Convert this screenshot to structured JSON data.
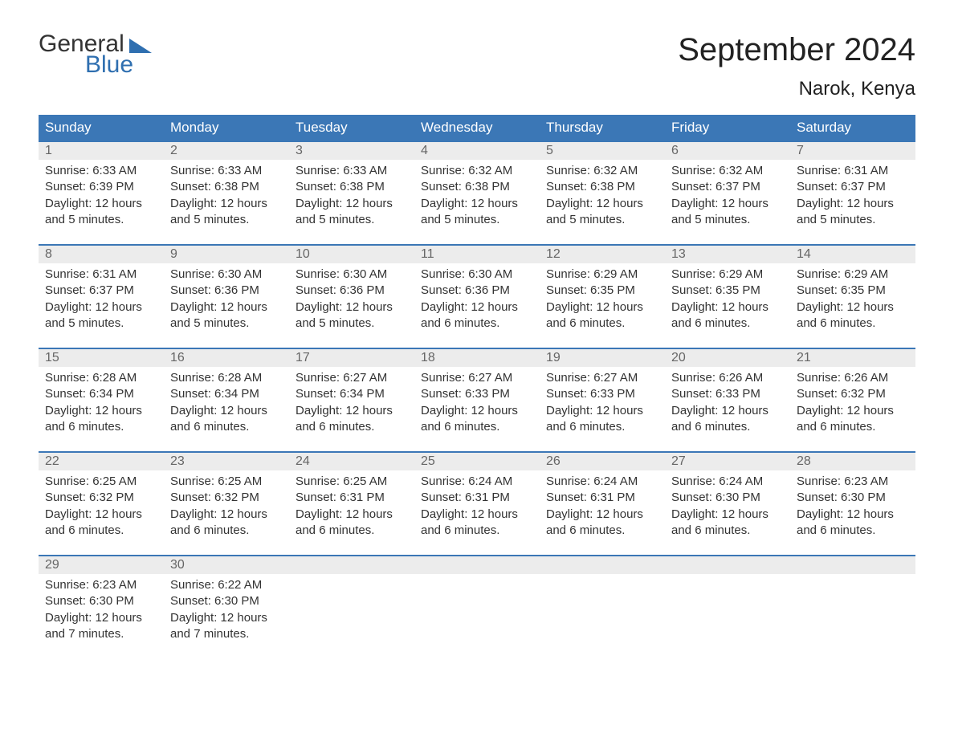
{
  "logo": {
    "word1": "General",
    "word2": "Blue"
  },
  "title": "September 2024",
  "location": "Narok, Kenya",
  "colors": {
    "header_bg": "#3b77b6",
    "header_text": "#ffffff",
    "daynum_bg": "#ececec",
    "divider": "#3b77b6",
    "logo_blue": "#2f6fb0",
    "body_text": "#333333",
    "background": "#ffffff"
  },
  "fonts": {
    "title_size_pt": 30,
    "location_size_pt": 18,
    "header_size_pt": 13,
    "cell_size_pt": 11
  },
  "type": "calendar-table",
  "day_names": [
    "Sunday",
    "Monday",
    "Tuesday",
    "Wednesday",
    "Thursday",
    "Friday",
    "Saturday"
  ],
  "weeks": [
    [
      {
        "n": "1",
        "sunrise": "Sunrise: 6:33 AM",
        "sunset": "Sunset: 6:39 PM",
        "d1": "Daylight: 12 hours",
        "d2": "and 5 minutes."
      },
      {
        "n": "2",
        "sunrise": "Sunrise: 6:33 AM",
        "sunset": "Sunset: 6:38 PM",
        "d1": "Daylight: 12 hours",
        "d2": "and 5 minutes."
      },
      {
        "n": "3",
        "sunrise": "Sunrise: 6:33 AM",
        "sunset": "Sunset: 6:38 PM",
        "d1": "Daylight: 12 hours",
        "d2": "and 5 minutes."
      },
      {
        "n": "4",
        "sunrise": "Sunrise: 6:32 AM",
        "sunset": "Sunset: 6:38 PM",
        "d1": "Daylight: 12 hours",
        "d2": "and 5 minutes."
      },
      {
        "n": "5",
        "sunrise": "Sunrise: 6:32 AM",
        "sunset": "Sunset: 6:38 PM",
        "d1": "Daylight: 12 hours",
        "d2": "and 5 minutes."
      },
      {
        "n": "6",
        "sunrise": "Sunrise: 6:32 AM",
        "sunset": "Sunset: 6:37 PM",
        "d1": "Daylight: 12 hours",
        "d2": "and 5 minutes."
      },
      {
        "n": "7",
        "sunrise": "Sunrise: 6:31 AM",
        "sunset": "Sunset: 6:37 PM",
        "d1": "Daylight: 12 hours",
        "d2": "and 5 minutes."
      }
    ],
    [
      {
        "n": "8",
        "sunrise": "Sunrise: 6:31 AM",
        "sunset": "Sunset: 6:37 PM",
        "d1": "Daylight: 12 hours",
        "d2": "and 5 minutes."
      },
      {
        "n": "9",
        "sunrise": "Sunrise: 6:30 AM",
        "sunset": "Sunset: 6:36 PM",
        "d1": "Daylight: 12 hours",
        "d2": "and 5 minutes."
      },
      {
        "n": "10",
        "sunrise": "Sunrise: 6:30 AM",
        "sunset": "Sunset: 6:36 PM",
        "d1": "Daylight: 12 hours",
        "d2": "and 5 minutes."
      },
      {
        "n": "11",
        "sunrise": "Sunrise: 6:30 AM",
        "sunset": "Sunset: 6:36 PM",
        "d1": "Daylight: 12 hours",
        "d2": "and 6 minutes."
      },
      {
        "n": "12",
        "sunrise": "Sunrise: 6:29 AM",
        "sunset": "Sunset: 6:35 PM",
        "d1": "Daylight: 12 hours",
        "d2": "and 6 minutes."
      },
      {
        "n": "13",
        "sunrise": "Sunrise: 6:29 AM",
        "sunset": "Sunset: 6:35 PM",
        "d1": "Daylight: 12 hours",
        "d2": "and 6 minutes."
      },
      {
        "n": "14",
        "sunrise": "Sunrise: 6:29 AM",
        "sunset": "Sunset: 6:35 PM",
        "d1": "Daylight: 12 hours",
        "d2": "and 6 minutes."
      }
    ],
    [
      {
        "n": "15",
        "sunrise": "Sunrise: 6:28 AM",
        "sunset": "Sunset: 6:34 PM",
        "d1": "Daylight: 12 hours",
        "d2": "and 6 minutes."
      },
      {
        "n": "16",
        "sunrise": "Sunrise: 6:28 AM",
        "sunset": "Sunset: 6:34 PM",
        "d1": "Daylight: 12 hours",
        "d2": "and 6 minutes."
      },
      {
        "n": "17",
        "sunrise": "Sunrise: 6:27 AM",
        "sunset": "Sunset: 6:34 PM",
        "d1": "Daylight: 12 hours",
        "d2": "and 6 minutes."
      },
      {
        "n": "18",
        "sunrise": "Sunrise: 6:27 AM",
        "sunset": "Sunset: 6:33 PM",
        "d1": "Daylight: 12 hours",
        "d2": "and 6 minutes."
      },
      {
        "n": "19",
        "sunrise": "Sunrise: 6:27 AM",
        "sunset": "Sunset: 6:33 PM",
        "d1": "Daylight: 12 hours",
        "d2": "and 6 minutes."
      },
      {
        "n": "20",
        "sunrise": "Sunrise: 6:26 AM",
        "sunset": "Sunset: 6:33 PM",
        "d1": "Daylight: 12 hours",
        "d2": "and 6 minutes."
      },
      {
        "n": "21",
        "sunrise": "Sunrise: 6:26 AM",
        "sunset": "Sunset: 6:32 PM",
        "d1": "Daylight: 12 hours",
        "d2": "and 6 minutes."
      }
    ],
    [
      {
        "n": "22",
        "sunrise": "Sunrise: 6:25 AM",
        "sunset": "Sunset: 6:32 PM",
        "d1": "Daylight: 12 hours",
        "d2": "and 6 minutes."
      },
      {
        "n": "23",
        "sunrise": "Sunrise: 6:25 AM",
        "sunset": "Sunset: 6:32 PM",
        "d1": "Daylight: 12 hours",
        "d2": "and 6 minutes."
      },
      {
        "n": "24",
        "sunrise": "Sunrise: 6:25 AM",
        "sunset": "Sunset: 6:31 PM",
        "d1": "Daylight: 12 hours",
        "d2": "and 6 minutes."
      },
      {
        "n": "25",
        "sunrise": "Sunrise: 6:24 AM",
        "sunset": "Sunset: 6:31 PM",
        "d1": "Daylight: 12 hours",
        "d2": "and 6 minutes."
      },
      {
        "n": "26",
        "sunrise": "Sunrise: 6:24 AM",
        "sunset": "Sunset: 6:31 PM",
        "d1": "Daylight: 12 hours",
        "d2": "and 6 minutes."
      },
      {
        "n": "27",
        "sunrise": "Sunrise: 6:24 AM",
        "sunset": "Sunset: 6:30 PM",
        "d1": "Daylight: 12 hours",
        "d2": "and 6 minutes."
      },
      {
        "n": "28",
        "sunrise": "Sunrise: 6:23 AM",
        "sunset": "Sunset: 6:30 PM",
        "d1": "Daylight: 12 hours",
        "d2": "and 6 minutes."
      }
    ],
    [
      {
        "n": "29",
        "sunrise": "Sunrise: 6:23 AM",
        "sunset": "Sunset: 6:30 PM",
        "d1": "Daylight: 12 hours",
        "d2": "and 7 minutes."
      },
      {
        "n": "30",
        "sunrise": "Sunrise: 6:22 AM",
        "sunset": "Sunset: 6:30 PM",
        "d1": "Daylight: 12 hours",
        "d2": "and 7 minutes."
      },
      null,
      null,
      null,
      null,
      null
    ]
  ]
}
